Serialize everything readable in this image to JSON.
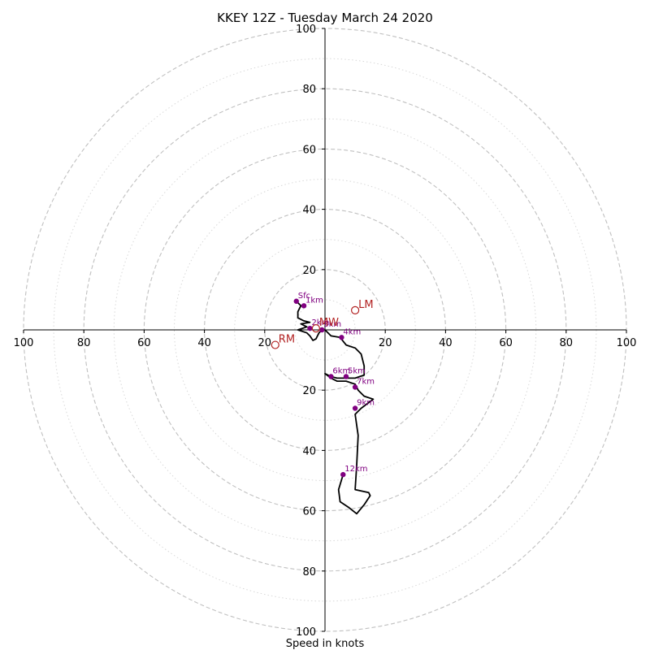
{
  "chart_data": {
    "type": "hodograph",
    "title": "KKEY 12Z - Tuesday March 24 2020",
    "xlabel": "Speed in knots",
    "rmax": 100,
    "ring_major": [
      20,
      40,
      60,
      80,
      100
    ],
    "ring_minor": [
      10,
      30,
      50,
      70,
      90
    ],
    "axis_ticks": {
      "right": [
        "20",
        "40",
        "60",
        "80",
        "100"
      ],
      "left": [
        "20",
        "40",
        "60",
        "80",
        "100"
      ],
      "up": [
        "20",
        "40",
        "60",
        "80",
        "100"
      ],
      "down": [
        "20",
        "40",
        "60",
        "80",
        "100"
      ]
    },
    "trace": [
      [
        -9.5,
        9.5
      ],
      [
        -8,
        8
      ],
      [
        -9,
        6
      ],
      [
        -9,
        4
      ],
      [
        -7,
        3
      ],
      [
        -5,
        2.5
      ],
      [
        -8,
        2
      ],
      [
        -6,
        1
      ],
      [
        -9,
        0
      ],
      [
        -6,
        -1
      ],
      [
        -5,
        -2
      ],
      [
        -4,
        -3.5
      ],
      [
        -3,
        -3
      ],
      [
        -2,
        -1
      ],
      [
        -1,
        0
      ],
      [
        0,
        0
      ],
      [
        2,
        -2
      ],
      [
        5,
        -2.5
      ],
      [
        7,
        -5
      ],
      [
        10,
        -6
      ],
      [
        12,
        -8
      ],
      [
        13,
        -12
      ],
      [
        13,
        -15
      ],
      [
        10,
        -16
      ],
      [
        7,
        -16
      ],
      [
        4,
        -16
      ],
      [
        2,
        -15.5
      ],
      [
        0,
        -14.5
      ],
      [
        2,
        -16
      ],
      [
        4,
        -17
      ],
      [
        7,
        -17
      ],
      [
        10,
        -18
      ],
      [
        11,
        -20
      ],
      [
        13,
        -22
      ],
      [
        16,
        -23
      ],
      [
        12,
        -26
      ],
      [
        10,
        -28
      ],
      [
        11,
        -35
      ],
      [
        10.5,
        -45
      ],
      [
        10,
        -53
      ],
      [
        14.5,
        -54
      ],
      [
        15,
        -55
      ],
      [
        13,
        -58
      ],
      [
        10.5,
        -61
      ],
      [
        8,
        -59
      ],
      [
        5,
        -57
      ],
      [
        4.5,
        -53
      ],
      [
        6,
        -48
      ]
    ],
    "height_markers": [
      {
        "label": "Sfc",
        "u": -9.5,
        "v": 9.5
      },
      {
        "label": "1km",
        "u": -7,
        "v": 8
      },
      {
        "label": "2km",
        "u": -5,
        "v": 0.5
      },
      {
        "label": "3km",
        "u": -1,
        "v": 0
      },
      {
        "label": "4km",
        "u": 5.5,
        "v": -2.5
      },
      {
        "label": "5km",
        "u": 7,
        "v": -15.5
      },
      {
        "label": "6km",
        "u": 2,
        "v": -15.5
      },
      {
        "label": "7km",
        "u": 10,
        "v": -19
      },
      {
        "label": "9km",
        "u": 10,
        "v": -26
      },
      {
        "label": "12km",
        "u": 6,
        "v": -48
      }
    ],
    "motion_markers": [
      {
        "label": "LM",
        "u": 10,
        "v": 6.5
      },
      {
        "label": "RM",
        "u": -16.5,
        "v": -5
      },
      {
        "label": "MW",
        "u": -3,
        "v": 0.5
      }
    ],
    "colors": {
      "trace": "#000000",
      "height_marker": "#800080",
      "motion_marker": "#b22222",
      "ring": "#c0c0c0",
      "axis": "#000000"
    }
  }
}
